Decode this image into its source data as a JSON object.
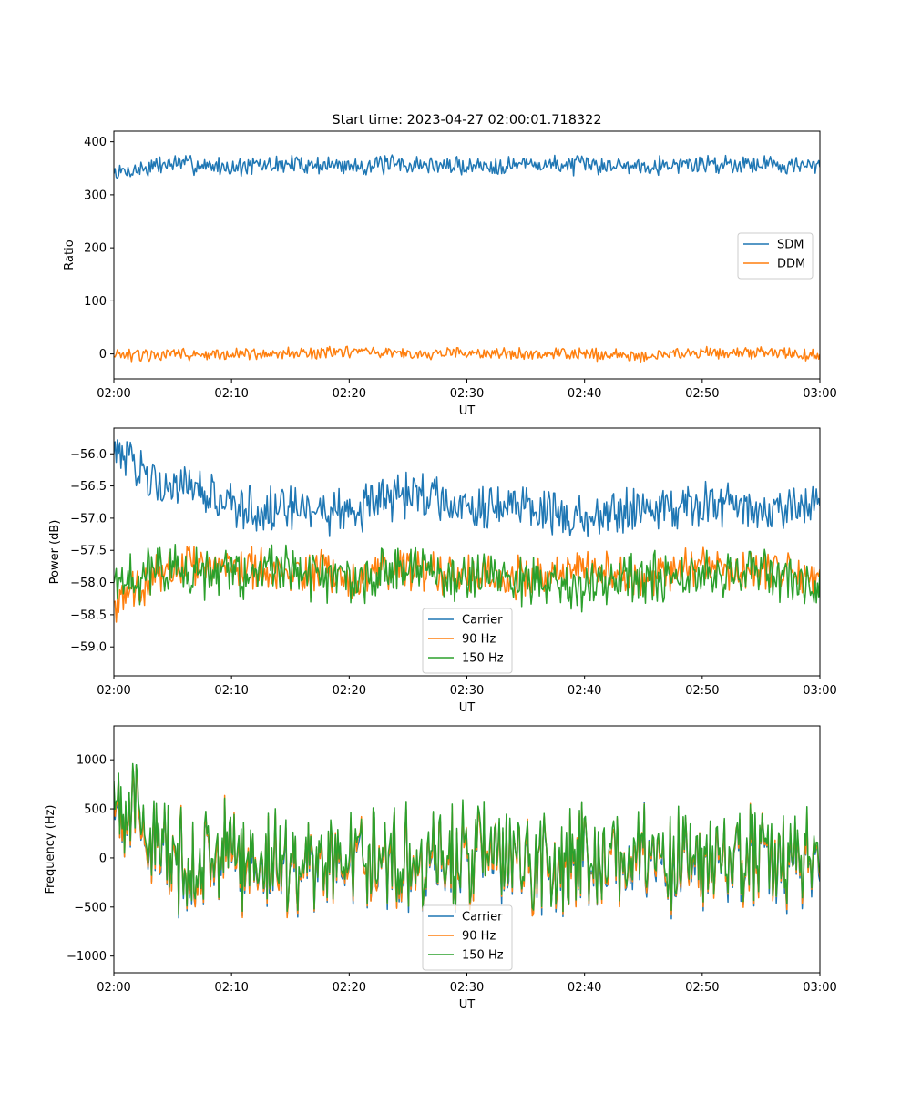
{
  "title": "Start time: 2023-04-27 02:00:01.718322",
  "chart_data": [
    {
      "type": "line",
      "title": "Start time: 2023-04-27 02:00:01.718322",
      "xlabel": "UT",
      "ylabel": "Ratio",
      "x_range": [
        "02:00",
        "03:00"
      ],
      "x_ticks": [
        "02:00",
        "02:10",
        "02:20",
        "02:30",
        "02:40",
        "02:50",
        "03:00"
      ],
      "ylim": [
        -47,
        420
      ],
      "y_ticks": [
        0,
        100,
        200,
        300,
        400
      ],
      "y_tick_labels": [
        "0",
        "100",
        "200",
        "300",
        "400"
      ],
      "legend_position": "center-right",
      "series": [
        {
          "name": "SDM",
          "color": "#1f77b4",
          "noise_points": 600,
          "approx_mean": 355,
          "approx_spread": 14,
          "sampled_values": [
            [
              0,
              340
            ],
            [
              5,
              360
            ],
            [
              10,
              352
            ],
            [
              15,
              358
            ],
            [
              20,
              355
            ],
            [
              25,
              357
            ],
            [
              30,
              354
            ],
            [
              35,
              358
            ],
            [
              40,
              356
            ],
            [
              45,
              356
            ],
            [
              50,
              358
            ],
            [
              55,
              360
            ],
            [
              60,
              352
            ]
          ]
        },
        {
          "name": "DDM",
          "color": "#ff7f0e",
          "noise_points": 600,
          "approx_mean": 0,
          "approx_spread": 9,
          "sampled_values": [
            [
              0,
              -5
            ],
            [
              5,
              0
            ],
            [
              10,
              -2
            ],
            [
              15,
              2
            ],
            [
              20,
              3
            ],
            [
              25,
              0
            ],
            [
              30,
              2
            ],
            [
              35,
              0
            ],
            [
              40,
              0
            ],
            [
              45,
              -3
            ],
            [
              50,
              2
            ],
            [
              55,
              3
            ],
            [
              60,
              -5
            ]
          ]
        }
      ]
    },
    {
      "type": "line",
      "title": "",
      "xlabel": "UT",
      "ylabel": "Power (dB)",
      "x_range": [
        "02:00",
        "03:00"
      ],
      "x_ticks": [
        "02:00",
        "02:10",
        "02:20",
        "02:30",
        "02:40",
        "02:50",
        "03:00"
      ],
      "ylim": [
        -59.45,
        -55.6
      ],
      "y_ticks": [
        -59.0,
        -58.5,
        -58.0,
        -57.5,
        -57.0,
        -56.5,
        -56.0
      ],
      "y_tick_labels": [
        "−59.0",
        "−58.5",
        "−58.0",
        "−57.5",
        "−57.0",
        "−56.5",
        "−56.0"
      ],
      "legend_position": "bottom-center",
      "series": [
        {
          "name": "Carrier",
          "color": "#1f77b4",
          "noise_points": 600,
          "approx_mean": -56.8,
          "approx_spread": 0.28,
          "sampled_values": [
            [
              0,
              -56.0
            ],
            [
              5,
              -56.5
            ],
            [
              10,
              -56.8
            ],
            [
              15,
              -56.9
            ],
            [
              20,
              -56.9
            ],
            [
              25,
              -56.6
            ],
            [
              30,
              -56.8
            ],
            [
              35,
              -56.8
            ],
            [
              40,
              -57.0
            ],
            [
              45,
              -56.8
            ],
            [
              50,
              -56.8
            ],
            [
              55,
              -56.9
            ],
            [
              60,
              -56.8
            ]
          ]
        },
        {
          "name": "90 Hz",
          "color": "#ff7f0e",
          "noise_points": 600,
          "approx_mean": -57.85,
          "approx_spread": 0.25,
          "sampled_values": [
            [
              0,
              -58.3
            ],
            [
              5,
              -57.7
            ],
            [
              10,
              -57.8
            ],
            [
              15,
              -57.8
            ],
            [
              20,
              -57.9
            ],
            [
              25,
              -57.8
            ],
            [
              30,
              -57.9
            ],
            [
              35,
              -57.9
            ],
            [
              40,
              -57.8
            ],
            [
              45,
              -57.9
            ],
            [
              50,
              -57.8
            ],
            [
              55,
              -57.8
            ],
            [
              60,
              -57.9
            ]
          ]
        },
        {
          "name": "150 Hz",
          "color": "#2ca02c",
          "noise_points": 600,
          "approx_mean": -57.9,
          "approx_spread": 0.3,
          "sampled_values": [
            [
              0,
              -58.0
            ],
            [
              5,
              -57.8
            ],
            [
              10,
              -57.9
            ],
            [
              15,
              -57.8
            ],
            [
              20,
              -58.0
            ],
            [
              25,
              -57.8
            ],
            [
              30,
              -57.9
            ],
            [
              35,
              -58.0
            ],
            [
              40,
              -58.1
            ],
            [
              45,
              -57.9
            ],
            [
              50,
              -57.9
            ],
            [
              55,
              -57.8
            ],
            [
              60,
              -58.1
            ]
          ]
        }
      ]
    },
    {
      "type": "line",
      "title": "",
      "xlabel": "UT",
      "ylabel": "Frequency (Hz)",
      "x_range": [
        "02:00",
        "03:00"
      ],
      "x_ticks": [
        "02:00",
        "02:10",
        "02:20",
        "02:30",
        "02:40",
        "02:50",
        "03:00"
      ],
      "ylim": [
        -1170,
        1345
      ],
      "y_ticks": [
        -1000,
        -500,
        0,
        500,
        1000
      ],
      "y_tick_labels": [
        "−1000",
        "−500",
        "0",
        "500",
        "1000"
      ],
      "legend_position": "bottom-center",
      "series": [
        {
          "name": "Carrier",
          "color": "#1f77b4",
          "noise_points": 600,
          "approx_mean": -40,
          "approx_spread": 300,
          "sampled_values": [
            [
              0,
              700
            ],
            [
              5,
              -100
            ],
            [
              10,
              0
            ],
            [
              15,
              -100
            ],
            [
              20,
              0
            ],
            [
              25,
              -50
            ],
            [
              30,
              0
            ],
            [
              35,
              -100
            ],
            [
              40,
              0
            ],
            [
              45,
              -50
            ],
            [
              50,
              -100
            ],
            [
              55,
              0
            ],
            [
              60,
              0
            ]
          ]
        },
        {
          "name": "90 Hz",
          "color": "#ff7f0e",
          "noise_points": 600,
          "approx_mean": -20,
          "approx_spread": 300,
          "sampled_values": [
            [
              0,
              720
            ],
            [
              5,
              -80
            ],
            [
              10,
              20
            ],
            [
              15,
              -80
            ],
            [
              20,
              20
            ],
            [
              25,
              -30
            ],
            [
              30,
              20
            ],
            [
              35,
              -80
            ],
            [
              40,
              20
            ],
            [
              45,
              -30
            ],
            [
              50,
              -80
            ],
            [
              55,
              20
            ],
            [
              60,
              20
            ]
          ]
        },
        {
          "name": "150 Hz",
          "color": "#2ca02c",
          "noise_points": 600,
          "approx_mean": 10,
          "approx_spread": 300,
          "sampled_values": [
            [
              0,
              780
            ],
            [
              5,
              -50
            ],
            [
              10,
              50
            ],
            [
              15,
              -50
            ],
            [
              20,
              50
            ],
            [
              25,
              0
            ],
            [
              30,
              50
            ],
            [
              35,
              -50
            ],
            [
              40,
              50
            ],
            [
              45,
              0
            ],
            [
              50,
              -50
            ],
            [
              55,
              50
            ],
            [
              60,
              50
            ]
          ]
        }
      ]
    }
  ]
}
